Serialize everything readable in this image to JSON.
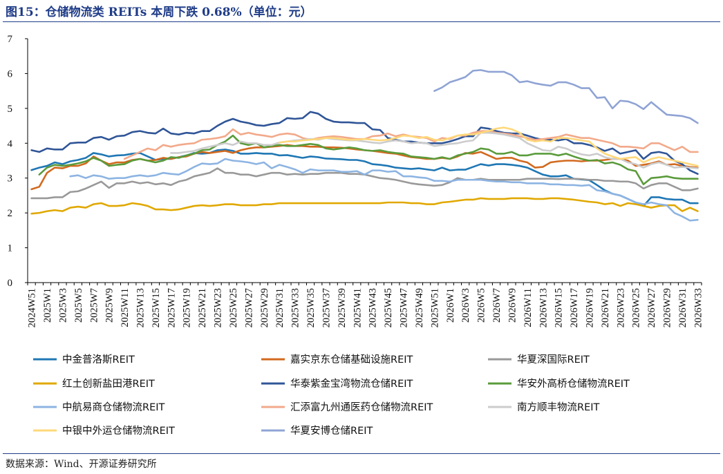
{
  "title": "图15：仓储物流类 REITs 本周下跌 0.68%（单位：元）",
  "source": "数据来源：Wind、开源证券研究所",
  "chart_data": {
    "type": "line",
    "title": "图15：仓储物流类 REITs 本周下跌 0.68%（单位：元）",
    "xlabel": "",
    "ylabel": "",
    "ylim": [
      0,
      7
    ],
    "yticks": [
      0,
      1,
      2,
      3,
      4,
      5,
      6,
      7
    ],
    "grid": false,
    "legend_position": "bottom",
    "x": [
      "2024W51",
      "2024W52",
      "2025W1",
      "2025W2",
      "2025W3",
      "2025W4",
      "2025W5",
      "2025W6",
      "2025W7",
      "2025W8",
      "2025W9",
      "2025W10",
      "2025W11",
      "2025W12",
      "2025W13",
      "2025W14",
      "2025W15",
      "2025W16",
      "2025W17",
      "2025W18",
      "2025W19",
      "2025W20",
      "2025W21",
      "2025W22",
      "2025W23",
      "2025W24",
      "2025W25",
      "2025W26",
      "2025W27",
      "2025W28",
      "2025W29",
      "2025W30",
      "2025W31",
      "2025W32",
      "2025W33",
      "2025W34",
      "2025W35",
      "2025W36",
      "2025W37",
      "2025W38",
      "2025W39",
      "2025W40",
      "2025W41",
      "2025W42",
      "2025W43",
      "2025W44",
      "2025W45",
      "2025W46",
      "2025W47",
      "2025W48",
      "2025W49",
      "2025W50",
      "2025W51",
      "2025W52",
      "2026W1",
      "2026W2",
      "2026W3",
      "2026W4",
      "2026W5",
      "2026W6",
      "2026W7",
      "2026W8",
      "2026W9",
      "2026W10",
      "2026W11",
      "2026W12",
      "2026W13",
      "2026W14",
      "2026W15",
      "2026W16",
      "2026W17",
      "2026W18",
      "2026W19",
      "2026W20",
      "2026W21",
      "2026W22",
      "2026W23",
      "2026W24",
      "2026W25",
      "2026W26",
      "2026W27",
      "2026W28",
      "2026W29",
      "2026W30",
      "2026W31",
      "2026W32",
      "2026W33"
    ],
    "x_tick_labels": [
      "2024W51",
      "2025W1",
      "2025W3",
      "2025W5",
      "2025W7",
      "2025W9",
      "2025W11",
      "2025W13",
      "2025W15",
      "2025W17",
      "2025W19",
      "2025W21",
      "2025W23",
      "2025W25",
      "2025W27",
      "2025W29",
      "2025W31",
      "2025W33",
      "2025W35",
      "2025W37",
      "2025W39",
      "2025W41",
      "2025W43",
      "2025W45",
      "2025W47",
      "2025W49",
      "2025W51",
      "2026W1",
      "2026W3",
      "2026W5",
      "2026W7",
      "2026W9",
      "2026W11",
      "2026W13",
      "2026W15",
      "2026W17",
      "2026W19",
      "2026W21",
      "2026W23",
      "2026W25",
      "2026W27",
      "2026W29",
      "2026W31",
      "2026W33"
    ],
    "series": [
      {
        "name": "中金普洛斯REIT",
        "color": "#1f77b4",
        "values": [
          3.23,
          3.3,
          3.35,
          3.45,
          3.4,
          3.48,
          3.52,
          3.58,
          3.72,
          3.68,
          3.62,
          3.65,
          3.66,
          3.7,
          3.72,
          3.62,
          3.52,
          3.55,
          3.55,
          3.6,
          3.65,
          3.72,
          3.7,
          3.72,
          3.8,
          3.82,
          3.78,
          3.7,
          3.7,
          3.72,
          3.7,
          3.7,
          3.65,
          3.66,
          3.62,
          3.58,
          3.62,
          3.6,
          3.56,
          3.55,
          3.54,
          3.52,
          3.52,
          3.48,
          3.4,
          3.38,
          3.35,
          3.3,
          3.28,
          3.26,
          3.28,
          3.25,
          3.22,
          3.3,
          3.22,
          3.24,
          3.24,
          3.32,
          3.4,
          3.36,
          3.4,
          3.4,
          3.38,
          3.35,
          3.3,
          3.2,
          3.1,
          3.05,
          3.05,
          3.08,
          2.98,
          2.96,
          2.94,
          2.8,
          2.65,
          2.55,
          2.5,
          2.4,
          2.3,
          2.2,
          2.45,
          2.45,
          2.4,
          2.38,
          2.38,
          2.28,
          2.28
        ]
      },
      {
        "name": "嘉实京东仓储基础设施REIT",
        "color": "#d2691e",
        "values": [
          2.68,
          2.75,
          3.15,
          3.3,
          3.28,
          3.35,
          3.35,
          3.42,
          3.62,
          3.5,
          3.4,
          3.45,
          3.45,
          3.52,
          3.55,
          3.5,
          3.52,
          3.58,
          3.55,
          3.6,
          3.62,
          3.7,
          3.75,
          3.72,
          3.75,
          3.78,
          3.72,
          3.8,
          3.85,
          3.88,
          3.88,
          3.9,
          3.92,
          3.95,
          3.92,
          3.92,
          3.9,
          3.9,
          3.88,
          3.88,
          3.87,
          3.85,
          3.82,
          3.8,
          3.78,
          3.75,
          3.72,
          3.7,
          3.65,
          3.6,
          3.58,
          3.55,
          3.55,
          3.58,
          3.55,
          3.62,
          3.72,
          3.7,
          3.75,
          3.65,
          3.55,
          3.58,
          3.58,
          3.5,
          3.45,
          3.3,
          3.32,
          3.45,
          3.48,
          3.5,
          3.5,
          3.48,
          3.5,
          3.5,
          3.52,
          3.55,
          3.55,
          3.5,
          3.35,
          3.38,
          3.42,
          3.48,
          3.38,
          3.4,
          3.35,
          3.32,
          3.3
        ]
      },
      {
        "name": "华夏深国际REIT",
        "color": "#999999",
        "values": [
          2.42,
          2.42,
          2.42,
          2.45,
          2.45,
          2.6,
          2.62,
          2.7,
          2.8,
          2.9,
          2.72,
          2.85,
          2.85,
          2.9,
          2.85,
          2.88,
          2.82,
          2.85,
          2.8,
          2.9,
          2.95,
          3.05,
          3.1,
          3.15,
          3.28,
          3.15,
          3.15,
          3.1,
          3.1,
          3.05,
          3.1,
          3.15,
          3.15,
          3.1,
          3.12,
          3.1,
          3.12,
          3.12,
          3.15,
          3.15,
          3.15,
          3.12,
          3.12,
          3.1,
          3.05,
          3.0,
          2.98,
          2.95,
          2.9,
          2.85,
          2.82,
          2.8,
          2.78,
          2.8,
          2.88,
          3.0,
          2.95,
          2.95,
          2.98,
          2.95,
          2.95,
          2.95,
          2.95,
          2.95,
          2.98,
          2.98,
          2.98,
          2.98,
          2.97,
          2.98,
          2.98,
          2.97,
          2.95,
          2.95,
          2.92,
          2.92,
          2.9,
          2.9,
          2.85,
          2.7,
          2.8,
          2.85,
          2.85,
          2.75,
          2.65,
          2.65,
          2.7
        ]
      },
      {
        "name": "红土创新盐田港REIT",
        "color": "#e0a800",
        "values": [
          1.98,
          2.0,
          2.05,
          2.08,
          2.05,
          2.15,
          2.18,
          2.15,
          2.25,
          2.28,
          2.2,
          2.2,
          2.22,
          2.28,
          2.25,
          2.2,
          2.1,
          2.1,
          2.08,
          2.1,
          2.15,
          2.2,
          2.22,
          2.2,
          2.22,
          2.25,
          2.25,
          2.22,
          2.22,
          2.22,
          2.25,
          2.25,
          2.28,
          2.28,
          2.28,
          2.28,
          2.28,
          2.28,
          2.28,
          2.28,
          2.28,
          2.28,
          2.28,
          2.28,
          2.28,
          2.28,
          2.3,
          2.3,
          2.3,
          2.28,
          2.28,
          2.25,
          2.25,
          2.3,
          2.32,
          2.35,
          2.38,
          2.38,
          2.42,
          2.4,
          2.4,
          2.4,
          2.42,
          2.42,
          2.42,
          2.4,
          2.4,
          2.42,
          2.42,
          2.4,
          2.38,
          2.35,
          2.32,
          2.3,
          2.25,
          2.28,
          2.2,
          2.28,
          2.25,
          2.2,
          2.15,
          2.2,
          2.22,
          2.22,
          2.05,
          2.15,
          2.05
        ]
      },
      {
        "name": "华泰紫金宝湾物流仓储REIT",
        "color": "#2f5597",
        "values": [
          3.8,
          3.75,
          3.85,
          3.82,
          3.82,
          4.0,
          4.02,
          4.02,
          4.15,
          4.18,
          4.1,
          4.2,
          4.22,
          4.32,
          4.35,
          4.3,
          4.28,
          4.42,
          4.28,
          4.25,
          4.3,
          4.28,
          4.35,
          4.35,
          4.5,
          4.62,
          4.7,
          4.62,
          4.58,
          4.52,
          4.5,
          4.55,
          4.58,
          4.72,
          4.7,
          4.72,
          4.9,
          4.85,
          4.7,
          4.62,
          4.6,
          4.6,
          4.58,
          4.58,
          4.4,
          4.38,
          4.15,
          4.1,
          4.05,
          4.05,
          4.02,
          4.0,
          4.0,
          4.0,
          4.05,
          4.12,
          4.2,
          4.2,
          4.45,
          4.42,
          4.35,
          4.3,
          4.28,
          4.28,
          4.22,
          4.15,
          4.1,
          4.1,
          4.08,
          4.12,
          4.0,
          4.0,
          3.95,
          3.88,
          3.78,
          3.85,
          3.7,
          3.75,
          3.8,
          3.55,
          3.72,
          3.75,
          3.7,
          3.5,
          3.4,
          3.22,
          3.12
        ]
      },
      {
        "name": "华安外高桥仓储物流REIT",
        "color": "#5a9b3b",
        "values": [
          null,
          3.1,
          3.3,
          3.38,
          3.35,
          3.38,
          3.42,
          3.48,
          3.58,
          3.5,
          3.35,
          3.38,
          3.4,
          3.5,
          3.55,
          3.5,
          3.45,
          3.5,
          3.6,
          3.58,
          3.65,
          3.7,
          3.8,
          3.82,
          3.95,
          4.05,
          4.22,
          4.0,
          3.95,
          4.0,
          3.88,
          3.92,
          3.95,
          3.92,
          3.92,
          3.95,
          3.98,
          3.95,
          3.85,
          3.82,
          3.85,
          3.88,
          3.85,
          3.8,
          3.78,
          3.8,
          3.75,
          3.72,
          3.7,
          3.62,
          3.6,
          3.58,
          3.55,
          3.6,
          3.55,
          3.65,
          3.7,
          3.75,
          3.85,
          3.82,
          3.7,
          3.7,
          3.75,
          3.65,
          3.65,
          3.7,
          3.7,
          3.7,
          3.65,
          3.7,
          3.62,
          3.55,
          3.5,
          3.52,
          3.42,
          3.45,
          3.38,
          3.25,
          3.2,
          2.82,
          3.0,
          3.02,
          3.05,
          3.0,
          2.98,
          2.98,
          2.98
        ]
      },
      {
        "name": "中航易商仓储物流REIT",
        "color": "#8db4e2",
        "values": [
          null,
          null,
          null,
          null,
          null,
          3.05,
          3.08,
          3.0,
          3.08,
          3.05,
          2.98,
          3.0,
          3.0,
          3.05,
          3.08,
          3.05,
          3.08,
          3.15,
          3.12,
          3.1,
          3.2,
          3.32,
          3.42,
          3.4,
          3.42,
          3.55,
          3.5,
          3.48,
          3.45,
          3.4,
          3.45,
          3.28,
          3.38,
          3.32,
          3.25,
          3.15,
          3.25,
          3.22,
          3.22,
          3.22,
          3.18,
          3.18,
          3.2,
          3.1,
          3.22,
          3.22,
          3.18,
          3.2,
          3.05,
          3.05,
          3.02,
          3.0,
          2.92,
          2.92,
          2.9,
          2.95,
          2.95,
          2.95,
          2.95,
          2.92,
          2.9,
          2.9,
          2.88,
          2.88,
          2.85,
          2.85,
          2.85,
          2.82,
          2.82,
          2.8,
          2.8,
          2.78,
          2.8,
          2.65,
          2.62,
          2.55,
          2.5,
          2.4,
          2.3,
          2.25,
          2.3,
          2.25,
          2.22,
          2.0,
          1.9,
          1.78,
          1.8
        ]
      },
      {
        "name": "汇添富九州通医药仓储物流REIT",
        "color": "#f2a98a",
        "values": [
          null,
          null,
          null,
          null,
          null,
          null,
          null,
          null,
          null,
          null,
          null,
          null,
          3.55,
          3.65,
          3.75,
          3.85,
          3.8,
          3.95,
          3.9,
          3.95,
          3.98,
          4.0,
          4.1,
          4.12,
          4.15,
          4.2,
          4.4,
          4.25,
          4.3,
          4.25,
          4.22,
          4.18,
          4.25,
          4.28,
          4.25,
          4.15,
          4.1,
          4.15,
          4.18,
          4.2,
          4.18,
          4.15,
          4.12,
          4.12,
          4.2,
          4.22,
          4.28,
          4.2,
          4.25,
          4.2,
          4.18,
          4.15,
          4.05,
          4.15,
          4.12,
          4.22,
          4.22,
          4.3,
          4.35,
          4.35,
          4.3,
          4.28,
          4.25,
          4.2,
          4.15,
          4.1,
          4.12,
          4.15,
          4.18,
          4.25,
          4.2,
          4.15,
          4.15,
          4.1,
          4.05,
          4.0,
          3.9,
          3.9,
          3.88,
          3.85,
          4.0,
          4.0,
          3.9,
          3.8,
          3.9,
          3.75,
          3.75
        ]
      },
      {
        "name": "南方顺丰物流REIT",
        "color": "#cccccc",
        "values": [
          null,
          null,
          null,
          null,
          null,
          null,
          null,
          null,
          null,
          null,
          null,
          null,
          null,
          null,
          null,
          null,
          null,
          null,
          3.72,
          3.72,
          3.75,
          3.78,
          3.85,
          3.9,
          3.95,
          4.0,
          3.95,
          4.05,
          4.0,
          4.0,
          3.95,
          3.95,
          4.02,
          4.05,
          4.08,
          4.1,
          4.12,
          4.1,
          4.15,
          4.12,
          4.1,
          4.08,
          4.08,
          4.05,
          4.02,
          4.0,
          4.05,
          4.08,
          4.05,
          4.0,
          4.02,
          4.0,
          3.92,
          3.95,
          3.98,
          4.0,
          4.05,
          4.08,
          4.3,
          4.3,
          4.28,
          4.25,
          4.2,
          4.15,
          4.0,
          3.9,
          3.8,
          3.78,
          3.9,
          3.85,
          3.75,
          3.68,
          3.65,
          3.7,
          3.6,
          3.55,
          3.55,
          3.45,
          3.4,
          3.3,
          3.4,
          3.45,
          3.38,
          3.3,
          3.32,
          3.3,
          3.28
        ]
      },
      {
        "name": "中银中外运仓储物流REIT",
        "color": "#ffd87a",
        "values": [
          null,
          null,
          null,
          null,
          null,
          null,
          null,
          null,
          null,
          null,
          null,
          null,
          null,
          null,
          null,
          null,
          null,
          null,
          null,
          null,
          null,
          null,
          null,
          null,
          null,
          null,
          null,
          null,
          null,
          null,
          null,
          null,
          4.02,
          4.05,
          4.05,
          4.08,
          4.1,
          4.12,
          4.15,
          4.15,
          4.12,
          4.1,
          4.1,
          4.12,
          4.1,
          4.08,
          4.1,
          4.15,
          4.22,
          4.2,
          4.15,
          4.18,
          4.1,
          4.08,
          4.15,
          4.22,
          4.25,
          4.25,
          4.3,
          4.35,
          4.42,
          4.45,
          4.4,
          4.3,
          4.1,
          4.05,
          4.08,
          4.05,
          4.15,
          4.15,
          4.12,
          4.08,
          4.05,
          3.85,
          3.7,
          3.62,
          3.55,
          3.58,
          3.6,
          3.45,
          3.55,
          3.6,
          3.55,
          3.5,
          3.45,
          3.4,
          3.35
        ]
      },
      {
        "name": "华夏安博仓储REIT",
        "color": "#8fa3d4",
        "values": [
          null,
          null,
          null,
          null,
          null,
          null,
          null,
          null,
          null,
          null,
          null,
          null,
          null,
          null,
          null,
          null,
          null,
          null,
          null,
          null,
          null,
          null,
          null,
          null,
          null,
          null,
          null,
          null,
          null,
          null,
          null,
          null,
          null,
          null,
          null,
          null,
          null,
          null,
          null,
          null,
          null,
          null,
          null,
          null,
          null,
          null,
          null,
          null,
          null,
          null,
          null,
          null,
          5.5,
          5.6,
          5.75,
          5.82,
          5.9,
          6.08,
          6.1,
          6.05,
          6.05,
          6.05,
          5.95,
          5.75,
          5.78,
          5.72,
          5.68,
          5.65,
          5.75,
          5.75,
          5.68,
          5.58,
          5.58,
          5.3,
          5.32,
          5.0,
          5.22,
          5.2,
          5.12,
          4.98,
          5.18,
          5.0,
          4.82,
          4.8,
          4.78,
          4.72,
          4.58
        ]
      }
    ]
  }
}
